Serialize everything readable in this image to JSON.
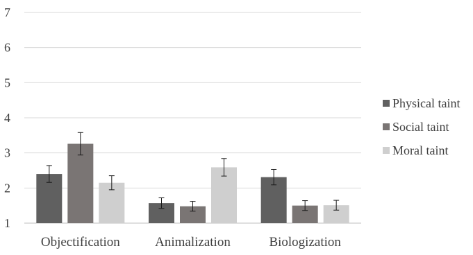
{
  "chart_data": {
    "type": "bar",
    "categories": [
      "Objectification",
      "Animalization",
      "Biologization"
    ],
    "series": [
      {
        "name": "Physical taint",
        "values": [
          2.4,
          1.57,
          2.31
        ],
        "errors": [
          0.24,
          0.15,
          0.22
        ],
        "color": "#606060"
      },
      {
        "name": "Social taint",
        "values": [
          3.26,
          1.48,
          1.5
        ],
        "errors": [
          0.32,
          0.14,
          0.14
        ],
        "color": "#7a7574"
      },
      {
        "name": "Moral taint",
        "values": [
          2.15,
          2.59,
          1.51
        ],
        "errors": [
          0.2,
          0.25,
          0.14
        ],
        "color": "#cfcfcf"
      }
    ],
    "y_ticks": [
      "1",
      "2",
      "3",
      "4",
      "5",
      "6",
      "7"
    ],
    "ylim": [
      1,
      7
    ],
    "grid": true,
    "legend_position": "right",
    "title": "",
    "xlabel": "",
    "ylabel": ""
  }
}
